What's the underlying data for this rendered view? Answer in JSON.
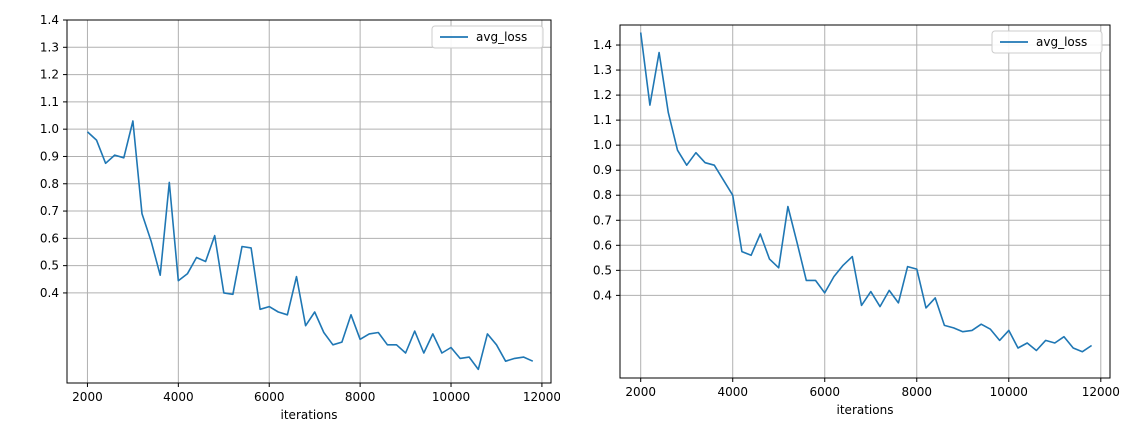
{
  "chart_data": [
    {
      "type": "line",
      "xlabel": "iterations",
      "ylabel": "",
      "grid": true,
      "legend_position": "top-right",
      "xlim": [
        1550,
        12200
      ],
      "ylim": [
        0.07,
        1.4
      ],
      "xticks": [
        2000,
        4000,
        6000,
        8000,
        10000,
        12000
      ],
      "yticks": [
        0.4,
        0.5,
        0.6,
        0.7,
        0.8,
        0.9,
        1.0,
        1.1,
        1.2,
        1.3,
        1.4
      ],
      "series": [
        {
          "name": "avg_loss",
          "color": "#1f77b4",
          "x": [
            2000,
            2200,
            2400,
            2600,
            2800,
            3000,
            3200,
            3400,
            3600,
            3800,
            4000,
            4200,
            4400,
            4600,
            4800,
            5000,
            5200,
            5400,
            5600,
            5800,
            6000,
            6200,
            6400,
            6600,
            6800,
            7000,
            7200,
            7400,
            7600,
            7800,
            8000,
            8200,
            8400,
            8600,
            8800,
            9000,
            9200,
            9400,
            9600,
            9800,
            10000,
            10200,
            10400,
            10600,
            10800,
            11000,
            11200,
            11400,
            11600,
            11800
          ],
          "y": [
            0.99,
            0.96,
            0.875,
            0.905,
            0.895,
            1.03,
            0.69,
            0.59,
            0.465,
            0.805,
            0.445,
            0.47,
            0.53,
            0.515,
            0.61,
            0.4,
            0.395,
            0.57,
            0.565,
            0.34,
            0.35,
            0.33,
            0.32,
            0.46,
            0.28,
            0.33,
            0.255,
            0.21,
            0.22,
            0.32,
            0.23,
            0.25,
            0.255,
            0.21,
            0.21,
            0.18,
            0.26,
            0.18,
            0.25,
            0.18,
            0.2,
            0.16,
            0.165,
            0.12,
            0.25,
            0.21,
            0.15,
            0.16,
            0.165,
            0.15
          ]
        }
      ]
    },
    {
      "type": "line",
      "xlabel": "iterations",
      "ylabel": "",
      "grid": true,
      "legend_position": "top-right",
      "xlim": [
        1550,
        12200
      ],
      "ylim": [
        0.07,
        1.48
      ],
      "xticks": [
        2000,
        4000,
        6000,
        8000,
        10000,
        12000
      ],
      "yticks": [
        0.4,
        0.5,
        0.6,
        0.7,
        0.8,
        0.9,
        1.0,
        1.1,
        1.2,
        1.3,
        1.4
      ],
      "series": [
        {
          "name": "avg_loss",
          "color": "#1f77b4",
          "x": [
            2000,
            2200,
            2400,
            2600,
            2800,
            3000,
            3200,
            3400,
            3600,
            3800,
            4000,
            4200,
            4400,
            4600,
            4800,
            5000,
            5200,
            5400,
            5600,
            5800,
            6000,
            6200,
            6400,
            6600,
            6800,
            7000,
            7200,
            7400,
            7600,
            7800,
            8000,
            8200,
            8400,
            8600,
            8800,
            9000,
            9200,
            9400,
            9600,
            9800,
            10000,
            10200,
            10400,
            10600,
            10800,
            11000,
            11200,
            11400,
            11600,
            11800
          ],
          "y": [
            1.45,
            1.16,
            1.37,
            1.13,
            0.98,
            0.92,
            0.97,
            0.93,
            0.92,
            0.86,
            0.8,
            0.575,
            0.56,
            0.645,
            0.545,
            0.51,
            0.755,
            0.61,
            0.46,
            0.46,
            0.41,
            0.475,
            0.52,
            0.555,
            0.36,
            0.415,
            0.355,
            0.42,
            0.37,
            0.515,
            0.505,
            0.35,
            0.39,
            0.28,
            0.27,
            0.255,
            0.26,
            0.285,
            0.265,
            0.22,
            0.26,
            0.19,
            0.21,
            0.18,
            0.22,
            0.21,
            0.235,
            0.19,
            0.175,
            0.2
          ]
        }
      ]
    }
  ]
}
